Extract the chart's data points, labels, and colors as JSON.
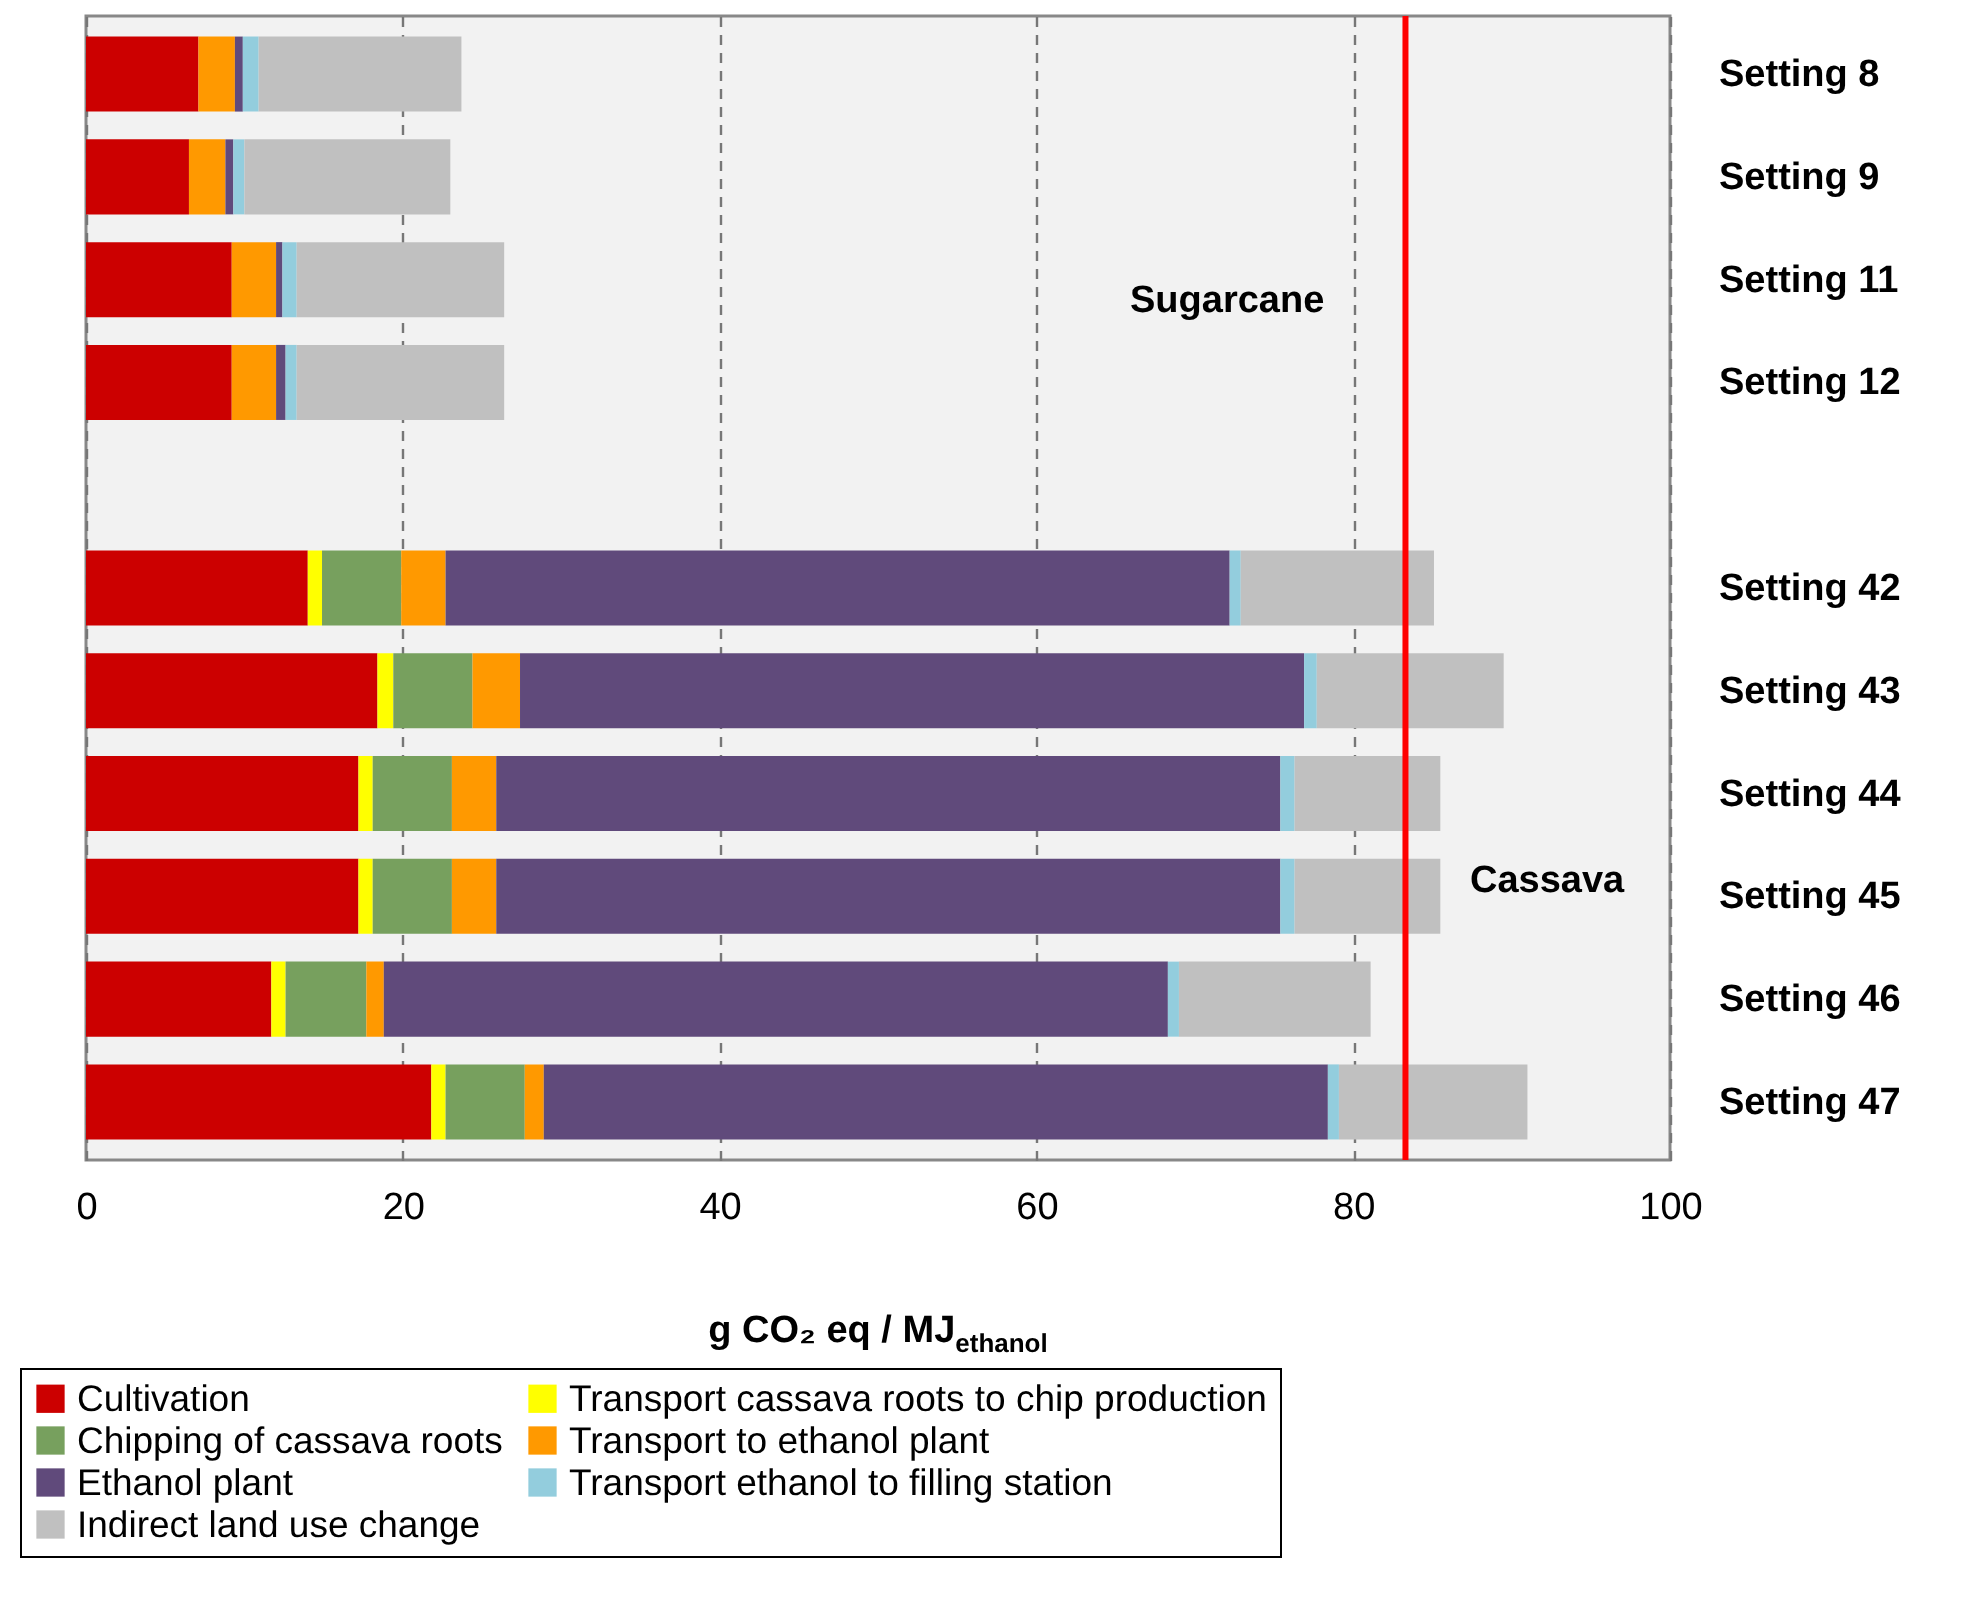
{
  "chart_data": {
    "type": "bar",
    "orientation": "horizontal",
    "stacked": true,
    "xlabel": "g CO₂ eq / MJ$_{ethanol}$",
    "categories": [
      "Setting 8",
      "Setting 9",
      "Setting 11",
      "Setting 12",
      null,
      "Setting 42",
      "Setting 43",
      "Setting 44",
      "Setting 45",
      "Setting 46",
      "Setting 47"
    ],
    "series": [
      {
        "name": "Cultivation",
        "color": "#cc0000",
        "values": [
          7.1,
          6.5,
          9.2,
          9.2,
          null,
          14.0,
          18.4,
          17.2,
          17.2,
          11.7,
          21.8
        ]
      },
      {
        "name": "Transport cassava roots to chip production",
        "color": "#ffff00",
        "values": [
          null,
          null,
          null,
          null,
          null,
          0.9,
          1.0,
          0.9,
          0.9,
          0.9,
          0.9
        ]
      },
      {
        "name": "Chipping of cassava roots",
        "color": "#77a05e",
        "values": [
          null,
          null,
          null,
          null,
          null,
          5.0,
          5.0,
          5.0,
          5.0,
          5.1,
          5.0
        ]
      },
      {
        "name": "Transport to ethanol plant",
        "color": "#ff9900",
        "values": [
          2.3,
          2.3,
          2.8,
          2.8,
          null,
          2.8,
          3.0,
          2.8,
          2.8,
          1.1,
          1.2
        ]
      },
      {
        "name": "Ethanol plant",
        "color": "#604a7b",
        "values": [
          0.5,
          0.5,
          0.4,
          0.6,
          null,
          49.5,
          49.5,
          49.5,
          49.5,
          49.5,
          49.5
        ]
      },
      {
        "name": "Transport ethanol to filling station",
        "color": "#93cddd",
        "values": [
          1.0,
          0.7,
          0.9,
          0.7,
          null,
          0.7,
          0.8,
          0.9,
          0.9,
          0.7,
          0.7
        ]
      },
      {
        "name": "Indirect land use change",
        "color": "#c0c0c0",
        "values": [
          12.8,
          13.0,
          13.1,
          13.1,
          null,
          12.2,
          11.8,
          9.2,
          9.2,
          12.1,
          11.9
        ]
      }
    ],
    "xlim": [
      0,
      100
    ],
    "xticks": [
      0,
      20,
      40,
      60,
      80,
      100
    ],
    "grid": "x",
    "legend": "bottom",
    "ref_lines": [
      {
        "axis": "x",
        "value": 83.3,
        "color": "#ff0000"
      }
    ],
    "annotations": [
      "Sugarcane",
      "Cassava"
    ]
  }
}
